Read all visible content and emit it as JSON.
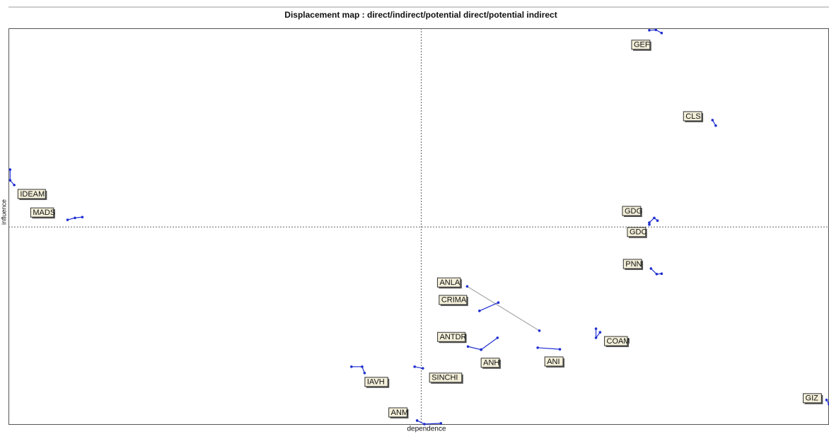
{
  "chart_data": {
    "type": "displacement",
    "title": "Displacement map :  direct/indirect/potential direct/potential indirect",
    "x_label": "dependence",
    "y_label": "influence",
    "xlim": [
      0,
      100
    ],
    "ylim": [
      0,
      100
    ],
    "x_center": 50.3,
    "y_center": 49.8,
    "color": "#1f2fd0",
    "series": [
      {
        "name": "GEF",
        "x": [
          78.1,
          78.9,
          79.6
        ],
        "y": [
          99.5,
          99.6,
          98.8
        ]
      },
      {
        "name": "CLS",
        "x": [
          85.8,
          86.2
        ],
        "y": [
          76.8,
          75.4
        ]
      },
      {
        "name": "IDEAM",
        "x": [
          0.2,
          0.2,
          0.7
        ],
        "y": [
          64.3,
          61.6,
          60.4
        ]
      },
      {
        "name": "MADS",
        "x": [
          9.0,
          8.1,
          7.2
        ],
        "y": [
          52.3,
          52.1,
          51.6
        ]
      },
      {
        "name": "GDG",
        "x": [
          78.1,
          78.7,
          79.1
        ],
        "y": [
          50.9,
          52.1,
          51.4
        ]
      },
      {
        "name": "GDC",
        "x": [
          78.1
        ],
        "y": [
          50.4
        ]
      },
      {
        "name": "PNN",
        "x": [
          78.3,
          79.0,
          79.6
        ],
        "y": [
          39.3,
          37.9,
          38.0
        ]
      },
      {
        "name": "ANLA",
        "x": [
          55.9,
          64.7
        ],
        "y": [
          34.8,
          23.6
        ],
        "color": "#a8a8a8"
      },
      {
        "name": "CRIMA",
        "x": [
          57.4,
          59.7
        ],
        "y": [
          28.6,
          30.7
        ]
      },
      {
        "name": "ANTDR",
        "x": [
          56.0,
          57.6,
          59.6
        ],
        "y": [
          19.6,
          18.8,
          21.8
        ]
      },
      {
        "name": "ANH",
        "x": [
          57.6
        ],
        "y": [
          18.8
        ]
      },
      {
        "name": "ANI",
        "x": [
          64.5,
          67.2
        ],
        "y": [
          19.3,
          18.9
        ]
      },
      {
        "name": "COAM",
        "x": [
          71.6,
          71.6,
          72.1
        ],
        "y": [
          24.1,
          21.8,
          23.2
        ]
      },
      {
        "name": "IAVH",
        "x": [
          41.8,
          43.1,
          43.4
        ],
        "y": [
          14.5,
          14.5,
          12.9
        ]
      },
      {
        "name": "SINCHI",
        "x": [
          49.5,
          50.5
        ],
        "y": [
          14.5,
          14.1
        ]
      },
      {
        "name": "ANM",
        "x": [
          49.8,
          50.7,
          52.7
        ],
        "y": [
          0.9,
          0,
          0.2
        ]
      },
      {
        "name": "GIZ",
        "x": [
          99.7,
          100
        ],
        "y": [
          6.1,
          5.0
        ]
      }
    ]
  }
}
